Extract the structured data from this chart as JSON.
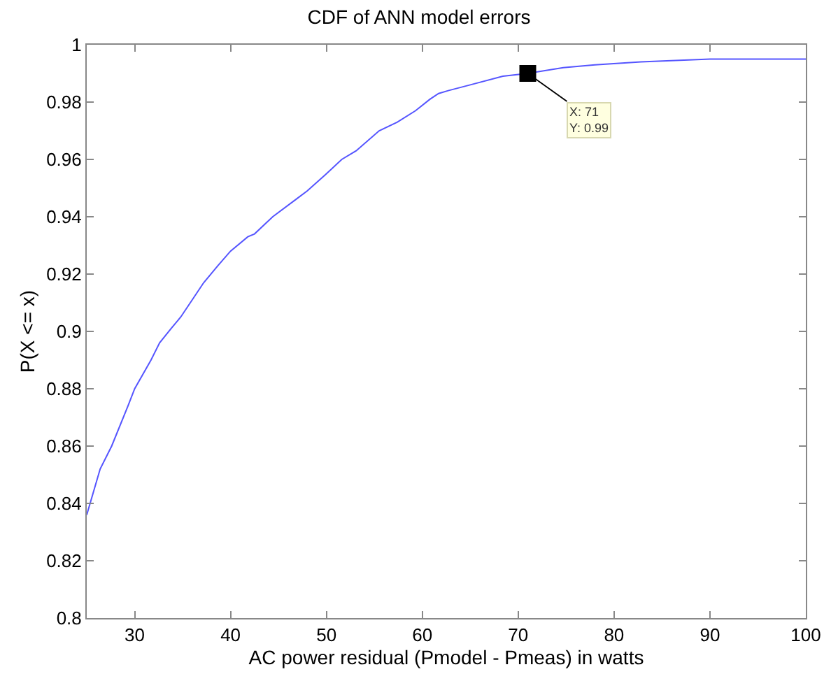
{
  "chart_data": {
    "type": "line",
    "title": "CDF of ANN model errors",
    "xlabel": "AC power residual (Pmodel - Pmeas) in watts",
    "ylabel": "P(X <= x)",
    "xlim": [
      25,
      100
    ],
    "xticks": [
      30,
      40,
      50,
      60,
      70,
      80,
      90,
      100
    ],
    "ylim": [
      0.8,
      1
    ],
    "yticks": [
      0.8,
      0.82,
      0.84,
      0.86,
      0.88,
      0.9,
      0.92,
      0.94,
      0.96,
      0.98,
      1
    ],
    "series": [
      {
        "color": "#5555ff",
        "x": [
          25,
          26.4,
          27.6,
          29.3,
          30,
          31.7,
          32.6,
          33.8,
          34.8,
          35.8,
          37.2,
          38.7,
          40,
          41.8,
          42.5,
          44.4,
          46.8,
          48,
          50,
          51.6,
          53.1,
          55.5,
          57.4,
          59.3,
          60.8,
          61.7,
          62.7,
          65.0,
          68.4,
          71,
          74.7,
          78.0,
          82.8,
          90.0,
          94.9,
          100
        ],
        "values": [
          0.836,
          0.852,
          0.86,
          0.874,
          0.88,
          0.89,
          0.896,
          0.901,
          0.905,
          0.91,
          0.917,
          0.923,
          0.928,
          0.933,
          0.934,
          0.94,
          0.946,
          0.949,
          0.955,
          0.96,
          0.963,
          0.97,
          0.973,
          0.977,
          0.981,
          0.983,
          0.984,
          0.986,
          0.989,
          0.99,
          0.992,
          0.993,
          0.994,
          0.995,
          0.995,
          0.995
        ]
      }
    ],
    "annotations": [
      {
        "text": "X: 71\nY: 0.99",
        "x": 71,
        "y": 0.99
      }
    ]
  }
}
